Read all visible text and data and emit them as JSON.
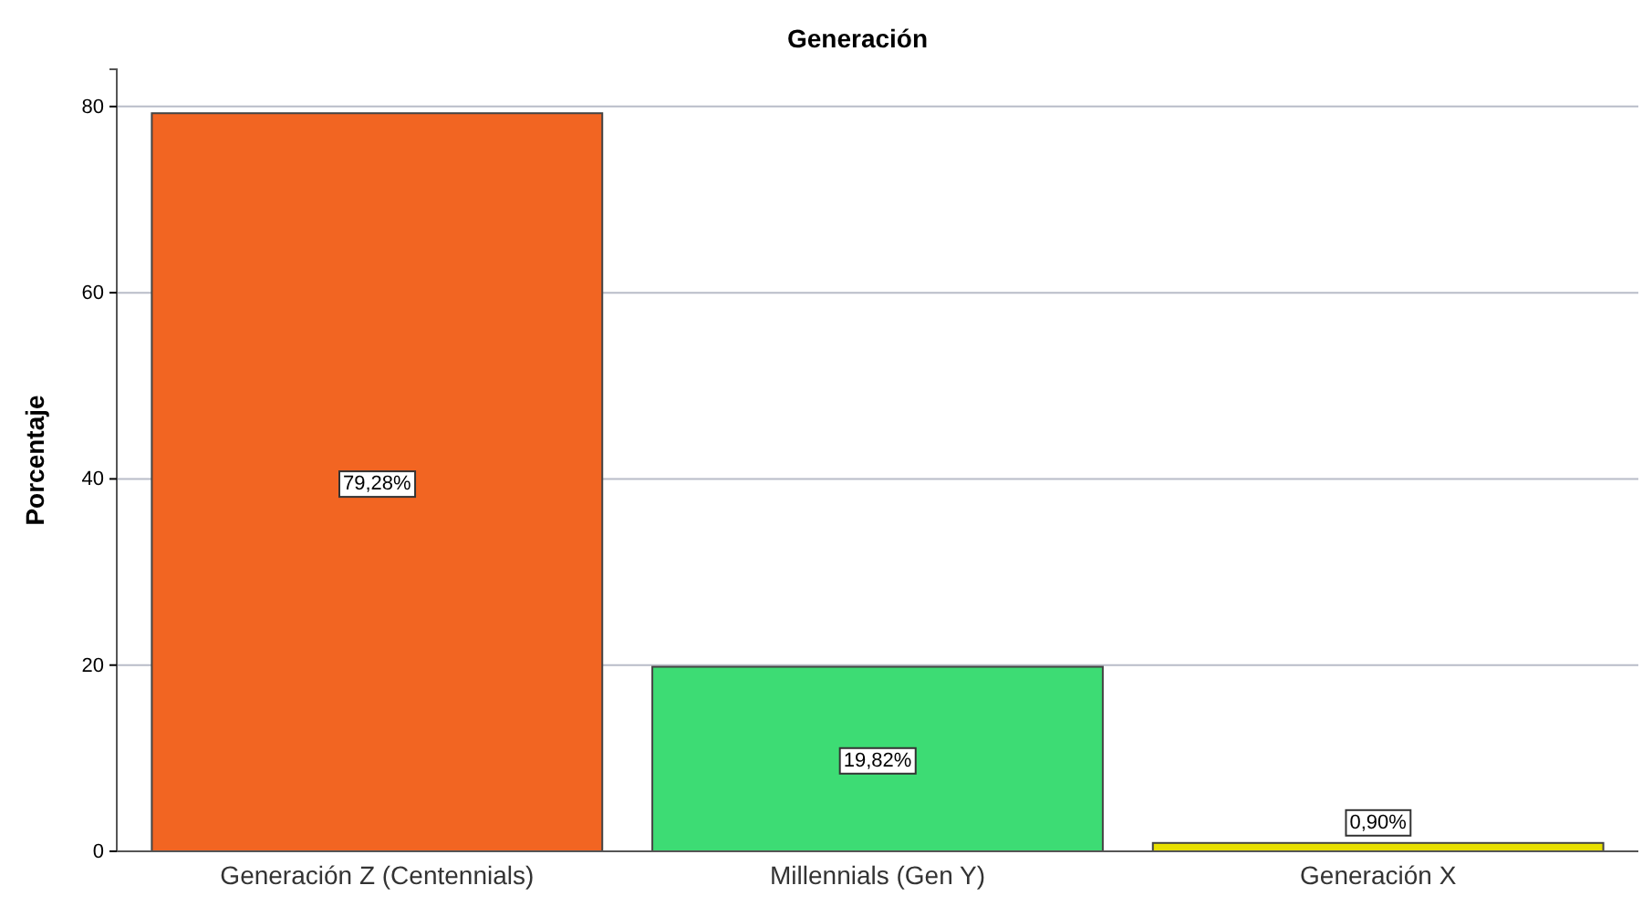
{
  "chart_data": {
    "type": "bar",
    "title": "Generación",
    "ylabel": "Porcentaje",
    "categories": [
      "Generación Z (Centennials)",
      "Millennials (Gen Y)",
      "Generación X"
    ],
    "values": [
      79.28,
      19.82,
      0.9
    ],
    "colors": [
      "#f26522",
      "#3ddc74",
      "#e8e000"
    ],
    "value_labels": [
      "79,28%",
      "19,82%",
      "0,90%"
    ],
    "ylim": [
      0,
      84
    ],
    "yticks": [
      0,
      20,
      40,
      60,
      80
    ],
    "grid": "y"
  }
}
